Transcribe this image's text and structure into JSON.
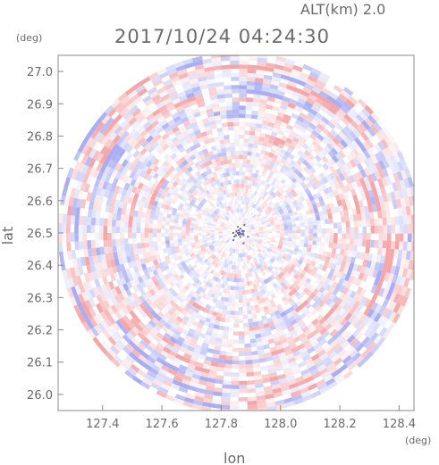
{
  "header": {
    "alt_text": "ALT(km)  2.0",
    "timestamp": "2017/10/24 04:24:30"
  },
  "chart_data": {
    "type": "heatmap",
    "title": "2017/10/24 04:24:30",
    "xlabel": "lon",
    "ylabel": "lat",
    "x_unit": "(deg)",
    "y_unit": "(deg)",
    "xlim": [
      127.25,
      128.45
    ],
    "ylim": [
      25.95,
      27.05
    ],
    "x_ticks": [
      "127.4",
      "127.6",
      "127.8",
      "128.0",
      "128.2",
      "128.4"
    ],
    "y_ticks": [
      "26.0",
      "26.1",
      "26.2",
      "26.3",
      "26.4",
      "26.5",
      "26.6",
      "26.7",
      "26.8",
      "26.9",
      "27.0"
    ],
    "radar_center": [
      127.86,
      26.5
    ],
    "radar_radius_deg_lat": 0.56,
    "palette": {
      "positive": "#f4a6a8",
      "negative": "#a9aef2",
      "neutral": "#ffffff",
      "frame": "#8a8a8a"
    },
    "grid": false,
    "legend": "none"
  }
}
